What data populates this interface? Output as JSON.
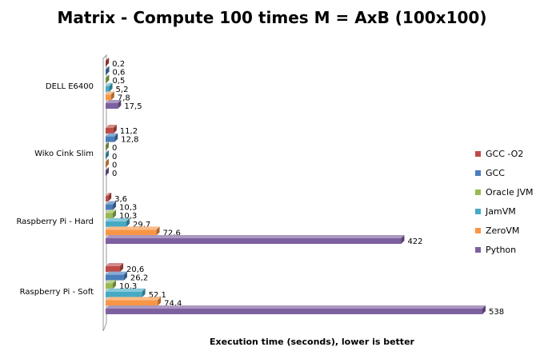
{
  "chart_data": {
    "type": "bar",
    "orientation": "horizontal",
    "style": "3d",
    "title": "Matrix - Compute 100 times M = AxB (100x100)",
    "xlabel": "Execution time (seconds), lower is better",
    "ylabel": "",
    "categories": [
      "DELL E6400",
      "Wiko Cink Slim",
      "Raspberry Pi - Hard",
      "Raspberry Pi - Soft"
    ],
    "series": [
      {
        "name": "GCC -O2",
        "color": "#be4b48",
        "values": [
          0.2,
          11.2,
          3.6,
          20.6
        ],
        "labels": [
          "0,2",
          "11,2",
          "3,6",
          "20,6"
        ]
      },
      {
        "name": "GCC",
        "color": "#4a7ebb",
        "values": [
          0.6,
          12.8,
          10.3,
          26.2
        ],
        "labels": [
          "0,6",
          "12,8",
          "10,3",
          "26,2"
        ]
      },
      {
        "name": "Oracle JVM",
        "color": "#98b954",
        "values": [
          0.5,
          0,
          10.3,
          10.3
        ],
        "labels": [
          "0,5",
          "0",
          "10,3",
          "10,3"
        ]
      },
      {
        "name": "JamVM",
        "color": "#46aac5",
        "values": [
          5.2,
          0,
          29.7,
          52.1
        ],
        "labels": [
          "5,2",
          "0",
          "29,7",
          "52,1"
        ]
      },
      {
        "name": "ZeroVM",
        "color": "#f79646",
        "values": [
          7.8,
          0,
          72.6,
          74.4
        ],
        "labels": [
          "7,8",
          "0",
          "72,6",
          "74,4"
        ]
      },
      {
        "name": "Python",
        "color": "#7d60a0",
        "values": [
          17.5,
          0,
          422,
          538
        ],
        "labels": [
          "17,5",
          "0",
          "422",
          "538"
        ]
      }
    ],
    "xlim": [
      0,
      538
    ],
    "grid": false,
    "legend_position": "right"
  }
}
